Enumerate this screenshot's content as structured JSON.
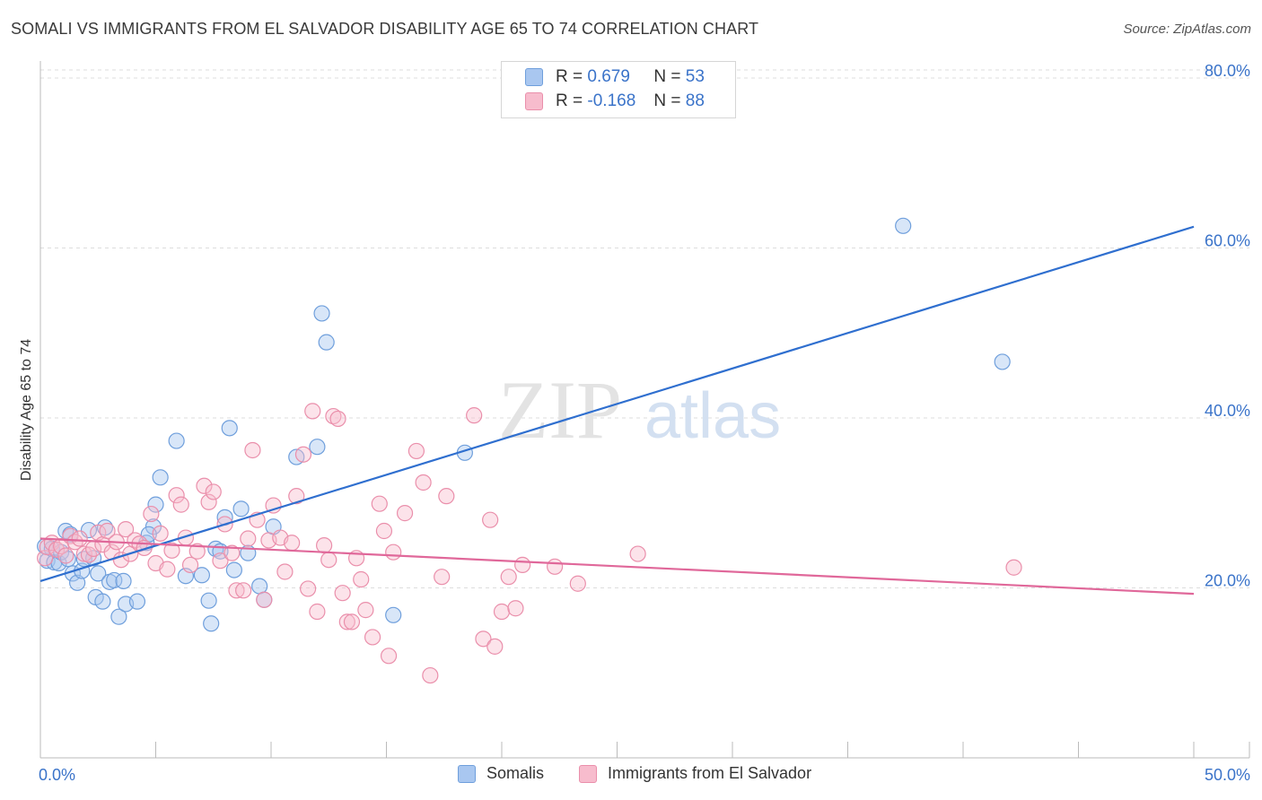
{
  "title": "SOMALI VS IMMIGRANTS FROM EL SALVADOR DISABILITY AGE 65 TO 74 CORRELATION CHART",
  "source": "Source: ZipAtlas.com",
  "watermark": {
    "zip": "ZIP",
    "atlas": "atlas"
  },
  "legend": {
    "r_label": "R =",
    "n_label": "N =",
    "rows": [
      {
        "name": "Somalis",
        "r": "0.679",
        "n": "53",
        "fill": "#a9c7f0",
        "stroke": "#6f9fdc"
      },
      {
        "name": "Immigrants from El Salvador",
        "r": "-0.168",
        "n": "88",
        "fill": "#f7bccd",
        "stroke": "#ea8fab"
      }
    ]
  },
  "chart_data": {
    "type": "scatter",
    "title": "SOMALI VS IMMIGRANTS FROM EL SALVADOR DISABILITY AGE 65 TO 74 CORRELATION CHART",
    "xlabel": "",
    "ylabel": "Disability Age 65 to 74",
    "xlim": [
      0,
      50
    ],
    "ylim": [
      0,
      82
    ],
    "x_tick_labels": [
      "0.0%",
      "50.0%"
    ],
    "y_ticks": [
      20,
      40,
      60,
      80
    ],
    "y_tick_labels": [
      "20.0%",
      "40.0%",
      "60.0%",
      "80.0%"
    ],
    "grid": true,
    "legend_position": "top-center",
    "series": [
      {
        "name": "Somalis",
        "color": "#6f9fdc",
        "line_color": "#2f6fcf",
        "trend": {
          "x": [
            0,
            50
          ],
          "y": [
            20.8,
            62.5
          ]
        },
        "points": [
          [
            0.2,
            24.9
          ],
          [
            0.3,
            23.2
          ],
          [
            0.5,
            24.6
          ],
          [
            0.6,
            23.0
          ],
          [
            0.8,
            22.9
          ],
          [
            0.9,
            24.2
          ],
          [
            1.1,
            26.7
          ],
          [
            1.2,
            23.4
          ],
          [
            1.3,
            26.3
          ],
          [
            1.4,
            21.7
          ],
          [
            1.6,
            20.6
          ],
          [
            1.8,
            22.0
          ],
          [
            1.9,
            23.4
          ],
          [
            2.1,
            26.8
          ],
          [
            2.3,
            23.5
          ],
          [
            2.4,
            18.9
          ],
          [
            2.5,
            21.7
          ],
          [
            2.7,
            18.4
          ],
          [
            2.8,
            27.1
          ],
          [
            3.0,
            20.7
          ],
          [
            3.2,
            20.9
          ],
          [
            3.4,
            16.6
          ],
          [
            3.6,
            20.8
          ],
          [
            3.7,
            18.1
          ],
          [
            4.2,
            18.4
          ],
          [
            4.6,
            25.3
          ],
          [
            4.9,
            27.2
          ],
          [
            5.0,
            29.8
          ],
          [
            5.2,
            33.0
          ],
          [
            5.9,
            37.3
          ],
          [
            6.3,
            21.4
          ],
          [
            7.0,
            21.5
          ],
          [
            7.3,
            18.5
          ],
          [
            7.4,
            15.8
          ],
          [
            7.6,
            24.6
          ],
          [
            7.8,
            24.3
          ],
          [
            8.0,
            28.3
          ],
          [
            8.2,
            38.8
          ],
          [
            8.4,
            22.1
          ],
          [
            8.7,
            29.3
          ],
          [
            9.0,
            24.1
          ],
          [
            9.5,
            20.2
          ],
          [
            9.7,
            18.6
          ],
          [
            10.1,
            27.2
          ],
          [
            11.1,
            35.4
          ],
          [
            12.0,
            36.6
          ],
          [
            12.2,
            52.3
          ],
          [
            12.4,
            48.9
          ],
          [
            15.3,
            16.8
          ],
          [
            18.4,
            35.9
          ],
          [
            37.4,
            62.6
          ],
          [
            41.7,
            46.6
          ],
          [
            4.7,
            26.3
          ]
        ]
      },
      {
        "name": "Immigrants from El Salvador",
        "color": "#ea8fab",
        "line_color": "#e0689a",
        "trend": {
          "x": [
            0,
            50
          ],
          "y": [
            25.8,
            19.3
          ]
        },
        "points": [
          [
            0.2,
            23.5
          ],
          [
            0.3,
            24.8
          ],
          [
            0.5,
            25.3
          ],
          [
            0.7,
            24.5
          ],
          [
            0.9,
            24.9
          ],
          [
            1.1,
            23.8
          ],
          [
            1.3,
            26.1
          ],
          [
            1.5,
            25.4
          ],
          [
            1.7,
            25.8
          ],
          [
            1.9,
            24.0
          ],
          [
            2.1,
            23.9
          ],
          [
            2.3,
            24.6
          ],
          [
            2.5,
            26.5
          ],
          [
            2.7,
            25.1
          ],
          [
            2.9,
            26.7
          ],
          [
            3.1,
            24.2
          ],
          [
            3.3,
            25.4
          ],
          [
            3.5,
            23.3
          ],
          [
            3.7,
            26.9
          ],
          [
            3.9,
            24.0
          ],
          [
            4.1,
            25.6
          ],
          [
            4.3,
            25.2
          ],
          [
            4.5,
            24.7
          ],
          [
            4.8,
            28.7
          ],
          [
            5.0,
            22.9
          ],
          [
            5.2,
            26.4
          ],
          [
            5.5,
            22.2
          ],
          [
            5.7,
            24.4
          ],
          [
            5.9,
            30.9
          ],
          [
            6.1,
            29.8
          ],
          [
            6.3,
            25.9
          ],
          [
            6.5,
            22.7
          ],
          [
            6.8,
            24.3
          ],
          [
            7.1,
            32.0
          ],
          [
            7.3,
            30.1
          ],
          [
            7.5,
            31.3
          ],
          [
            7.8,
            23.2
          ],
          [
            8.0,
            27.5
          ],
          [
            8.3,
            24.1
          ],
          [
            8.5,
            19.7
          ],
          [
            8.8,
            19.7
          ],
          [
            9.0,
            25.8
          ],
          [
            9.2,
            36.2
          ],
          [
            9.4,
            28.0
          ],
          [
            9.7,
            18.6
          ],
          [
            9.9,
            25.6
          ],
          [
            10.1,
            29.7
          ],
          [
            10.4,
            25.9
          ],
          [
            10.6,
            21.9
          ],
          [
            10.9,
            25.3
          ],
          [
            11.1,
            30.8
          ],
          [
            11.4,
            35.7
          ],
          [
            11.6,
            19.9
          ],
          [
            11.8,
            40.8
          ],
          [
            12.0,
            17.2
          ],
          [
            12.3,
            25.0
          ],
          [
            12.5,
            23.3
          ],
          [
            12.7,
            40.2
          ],
          [
            12.9,
            39.9
          ],
          [
            13.1,
            19.4
          ],
          [
            13.3,
            16.0
          ],
          [
            13.5,
            16.0
          ],
          [
            13.7,
            23.5
          ],
          [
            13.9,
            21.0
          ],
          [
            14.1,
            17.4
          ],
          [
            14.4,
            14.2
          ],
          [
            14.7,
            29.9
          ],
          [
            14.9,
            26.7
          ],
          [
            15.1,
            12.0
          ],
          [
            15.3,
            24.2
          ],
          [
            15.8,
            28.8
          ],
          [
            16.3,
            36.1
          ],
          [
            16.6,
            32.4
          ],
          [
            16.9,
            9.7
          ],
          [
            17.4,
            21.3
          ],
          [
            17.6,
            30.8
          ],
          [
            18.8,
            40.3
          ],
          [
            19.2,
            14.0
          ],
          [
            19.5,
            28.0
          ],
          [
            19.7,
            13.1
          ],
          [
            20.0,
            17.2
          ],
          [
            20.3,
            21.3
          ],
          [
            20.6,
            17.6
          ],
          [
            20.9,
            22.7
          ],
          [
            22.3,
            22.5
          ],
          [
            23.3,
            20.5
          ],
          [
            25.9,
            24.0
          ],
          [
            42.2,
            22.4
          ]
        ]
      }
    ]
  }
}
